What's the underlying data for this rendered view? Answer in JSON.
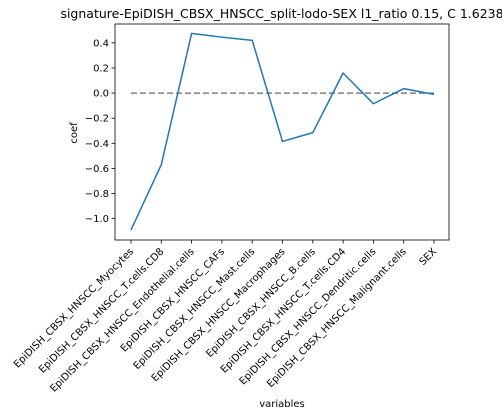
{
  "chart_data": {
    "type": "line",
    "title": "signature-EpiDISH_CBSX_HNSCC_split-lodo-SEX l1_ratio 0.15, C 1.6238",
    "xlabel": "variables",
    "ylabel": "coef",
    "categories": [
      "EpiDISH_CBSX_HNSCC_Myocytes",
      "EpiDISH_CBSX_HNSCC_T.cells.CD8",
      "EpiDISH_CBSX_HNSCC_Endothelial.cells",
      "EpiDISH_CBSX_HNSCC_CAFs",
      "EpiDISH_CBSX_HNSCC_Mast.cells",
      "EpiDISH_CBSX_HNSCC_Macrophages",
      "EpiDISH_CBSX_HNSCC_B.cells",
      "EpiDISH_CBSX_HNSCC_T.cells.CD4",
      "EpiDISH_CBSX_HNSCC_Dendritic.cells",
      "EpiDISH_CBSX_HNSCC_Malignant.cells",
      "SEX"
    ],
    "values": [
      -1.09,
      -0.57,
      0.475,
      0.445,
      0.42,
      -0.385,
      -0.315,
      0.16,
      -0.085,
      0.035,
      -0.01
    ],
    "ylim": [
      -1.17,
      0.55
    ],
    "yticks": [
      -1.0,
      -0.8,
      -0.6,
      -0.4,
      -0.2,
      0.0,
      0.2,
      0.4
    ],
    "ytick_labels": [
      "−1.0",
      "−0.8",
      "−0.6",
      "−0.4",
      "−0.2",
      "0.0",
      "0.2",
      "0.4"
    ],
    "reference_line": 0,
    "grid": false,
    "colors": {
      "line": "#1f77b4",
      "reference": "#7f7f7f",
      "axes": "#000000"
    }
  }
}
